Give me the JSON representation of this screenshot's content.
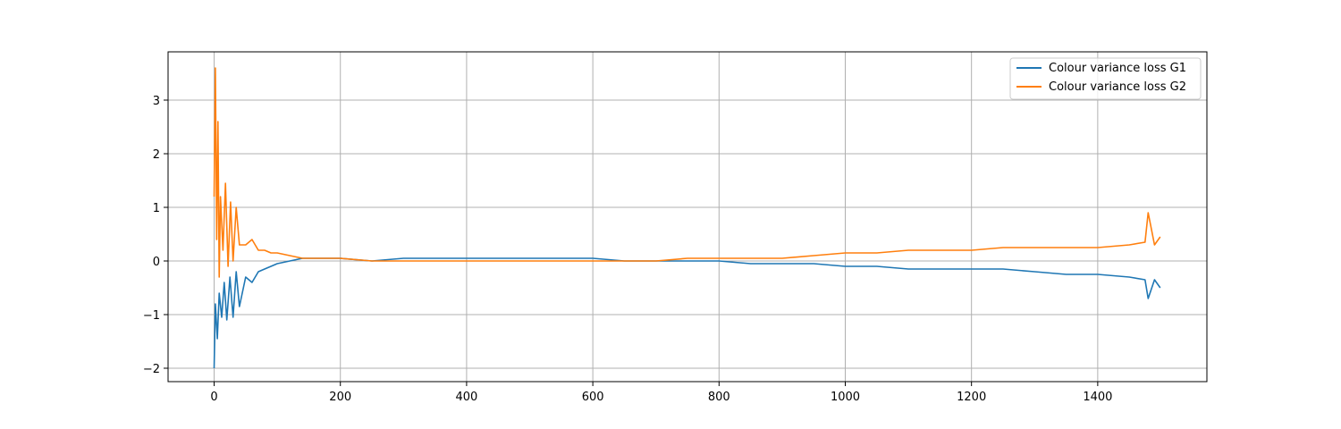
{
  "chart_data": {
    "type": "line",
    "title": "",
    "xlabel": "",
    "ylabel": "",
    "xlim": [
      -73,
      1573
    ],
    "ylim": [
      -2.25,
      3.9
    ],
    "xticks": [
      0,
      200,
      400,
      600,
      800,
      1000,
      1200,
      1400
    ],
    "yticks": [
      -2,
      -1,
      0,
      1,
      2,
      3
    ],
    "xtick_labels": [
      "0",
      "200",
      "400",
      "600",
      "800",
      "1000",
      "1200",
      "1400"
    ],
    "ytick_labels": [
      "−2",
      "−1",
      "0",
      "1",
      "2",
      "3"
    ],
    "grid": true,
    "legend_position": "top-right",
    "series": [
      {
        "name": "Colour variance loss G1",
        "color": "#1f77b4",
        "x": [
          0,
          2,
          5,
          8,
          12,
          16,
          20,
          25,
          30,
          35,
          40,
          50,
          60,
          70,
          80,
          90,
          100,
          120,
          140,
          160,
          180,
          200,
          250,
          300,
          350,
          400,
          450,
          500,
          550,
          600,
          650,
          700,
          750,
          800,
          850,
          900,
          950,
          1000,
          1050,
          1100,
          1150,
          1200,
          1250,
          1300,
          1350,
          1400,
          1450,
          1475,
          1480,
          1490,
          1499
        ],
        "values": [
          -2.0,
          -0.8,
          -1.45,
          -0.6,
          -1.05,
          -0.4,
          -1.1,
          -0.3,
          -1.05,
          -0.2,
          -0.85,
          -0.3,
          -0.4,
          -0.2,
          -0.15,
          -0.1,
          -0.05,
          0.0,
          0.05,
          0.05,
          0.05,
          0.05,
          0.0,
          0.05,
          0.05,
          0.05,
          0.05,
          0.05,
          0.05,
          0.05,
          0.0,
          0.0,
          0.0,
          0.0,
          -0.05,
          -0.05,
          -0.05,
          -0.1,
          -0.1,
          -0.15,
          -0.15,
          -0.15,
          -0.15,
          -0.2,
          -0.25,
          -0.25,
          -0.3,
          -0.35,
          -0.7,
          -0.35,
          -0.5
        ]
      },
      {
        "name": "Colour variance loss G2",
        "color": "#ff7f0e",
        "x": [
          0,
          2,
          4,
          6,
          8,
          10,
          14,
          18,
          22,
          26,
          30,
          35,
          40,
          50,
          60,
          70,
          80,
          90,
          100,
          120,
          140,
          160,
          180,
          200,
          250,
          300,
          350,
          400,
          450,
          500,
          550,
          600,
          650,
          700,
          750,
          800,
          850,
          900,
          950,
          1000,
          1050,
          1100,
          1150,
          1200,
          1250,
          1300,
          1350,
          1400,
          1450,
          1475,
          1480,
          1490,
          1499
        ],
        "values": [
          1.2,
          3.6,
          0.4,
          2.6,
          -0.3,
          1.2,
          0.2,
          1.45,
          -0.1,
          1.1,
          0.0,
          1.0,
          0.3,
          0.3,
          0.4,
          0.2,
          0.2,
          0.15,
          0.15,
          0.1,
          0.05,
          0.05,
          0.05,
          0.05,
          0.0,
          0.0,
          0.0,
          0.0,
          0.0,
          0.0,
          0.0,
          0.0,
          0.0,
          0.0,
          0.05,
          0.05,
          0.05,
          0.05,
          0.1,
          0.15,
          0.15,
          0.2,
          0.2,
          0.2,
          0.25,
          0.25,
          0.25,
          0.25,
          0.3,
          0.35,
          0.9,
          0.3,
          0.45
        ]
      }
    ]
  }
}
